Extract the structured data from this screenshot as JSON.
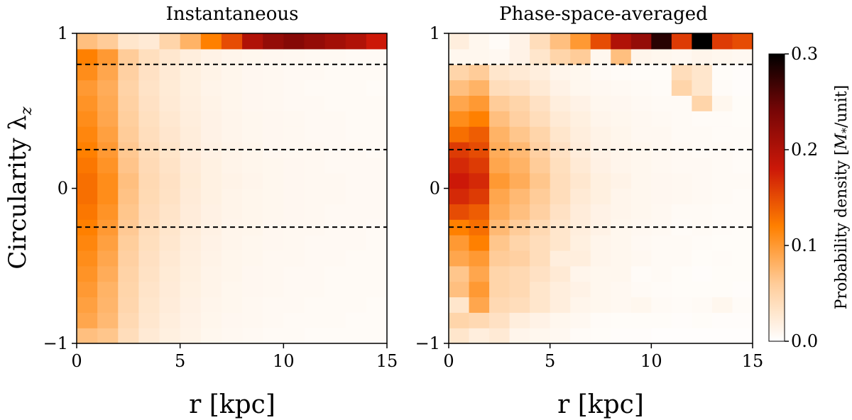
{
  "chart_data": [
    {
      "type": "heatmap",
      "title": "Instantaneous",
      "xlabel": "r [kpc]",
      "ylabel": "Circularity λ",
      "ylabel_subscript": "z",
      "xlim": [
        0,
        15
      ],
      "ylim": [
        -1,
        1
      ],
      "xticks": [
        0,
        5,
        10,
        15
      ],
      "yticks": [
        -1,
        0,
        1
      ],
      "ytick_labels": [
        "−1",
        "0",
        "1"
      ],
      "reference_lines_y": [
        0.8,
        0.25,
        -0.25
      ],
      "x_bins": 15,
      "y_bins": 20,
      "values": [
        [
          0.07,
          0.065,
          0.04,
          0.025,
          0.018,
          0.014,
          0.01,
          0.008,
          0.007,
          0.006,
          0.006,
          0.005,
          0.005,
          0.005,
          0.005
        ],
        [
          0.09,
          0.075,
          0.045,
          0.028,
          0.02,
          0.015,
          0.011,
          0.009,
          0.008,
          0.007,
          0.006,
          0.006,
          0.006,
          0.005,
          0.005
        ],
        [
          0.095,
          0.078,
          0.048,
          0.03,
          0.022,
          0.016,
          0.012,
          0.01,
          0.008,
          0.007,
          0.007,
          0.006,
          0.006,
          0.006,
          0.005
        ],
        [
          0.1,
          0.08,
          0.05,
          0.032,
          0.023,
          0.017,
          0.013,
          0.01,
          0.009,
          0.008,
          0.007,
          0.007,
          0.006,
          0.006,
          0.006
        ],
        [
          0.105,
          0.085,
          0.052,
          0.034,
          0.024,
          0.018,
          0.013,
          0.011,
          0.009,
          0.008,
          0.007,
          0.007,
          0.006,
          0.006,
          0.006
        ],
        [
          0.11,
          0.09,
          0.055,
          0.036,
          0.026,
          0.019,
          0.014,
          0.011,
          0.01,
          0.008,
          0.008,
          0.007,
          0.007,
          0.006,
          0.006
        ],
        [
          0.115,
          0.095,
          0.058,
          0.038,
          0.028,
          0.02,
          0.015,
          0.012,
          0.01,
          0.009,
          0.008,
          0.007,
          0.007,
          0.007,
          0.006
        ],
        [
          0.12,
          0.1,
          0.062,
          0.04,
          0.03,
          0.021,
          0.016,
          0.012,
          0.011,
          0.009,
          0.008,
          0.008,
          0.007,
          0.007,
          0.006
        ],
        [
          0.125,
          0.105,
          0.065,
          0.042,
          0.032,
          0.022,
          0.016,
          0.013,
          0.011,
          0.01,
          0.009,
          0.008,
          0.007,
          0.007,
          0.007
        ],
        [
          0.13,
          0.11,
          0.068,
          0.044,
          0.034,
          0.023,
          0.017,
          0.013,
          0.011,
          0.01,
          0.009,
          0.008,
          0.008,
          0.007,
          0.007
        ],
        [
          0.13,
          0.11,
          0.07,
          0.045,
          0.035,
          0.024,
          0.017,
          0.014,
          0.012,
          0.01,
          0.009,
          0.008,
          0.008,
          0.007,
          0.007
        ],
        [
          0.125,
          0.105,
          0.066,
          0.043,
          0.033,
          0.023,
          0.017,
          0.013,
          0.011,
          0.01,
          0.009,
          0.008,
          0.007,
          0.007,
          0.007
        ],
        [
          0.12,
          0.1,
          0.063,
          0.041,
          0.031,
          0.022,
          0.016,
          0.013,
          0.011,
          0.009,
          0.008,
          0.008,
          0.007,
          0.007,
          0.006
        ],
        [
          0.115,
          0.095,
          0.06,
          0.039,
          0.029,
          0.021,
          0.015,
          0.012,
          0.01,
          0.009,
          0.008,
          0.007,
          0.007,
          0.006,
          0.006
        ],
        [
          0.11,
          0.09,
          0.057,
          0.037,
          0.027,
          0.02,
          0.015,
          0.012,
          0.01,
          0.009,
          0.008,
          0.007,
          0.007,
          0.006,
          0.006
        ],
        [
          0.105,
          0.088,
          0.054,
          0.035,
          0.025,
          0.019,
          0.014,
          0.011,
          0.009,
          0.008,
          0.007,
          0.007,
          0.006,
          0.006,
          0.006
        ],
        [
          0.1,
          0.085,
          0.052,
          0.033,
          0.024,
          0.018,
          0.013,
          0.011,
          0.009,
          0.008,
          0.007,
          0.006,
          0.006,
          0.006,
          0.005
        ],
        [
          0.11,
          0.09,
          0.055,
          0.035,
          0.025,
          0.018,
          0.014,
          0.011,
          0.009,
          0.008,
          0.007,
          0.007,
          0.006,
          0.006,
          0.006
        ],
        [
          0.12,
          0.1,
          0.06,
          0.038,
          0.028,
          0.02,
          0.015,
          0.012,
          0.01,
          0.009,
          0.008,
          0.007,
          0.007,
          0.006,
          0.006
        ],
        [
          0.07,
          0.06,
          0.03,
          0.025,
          0.05,
          0.08,
          0.12,
          0.15,
          0.2,
          0.22,
          0.23,
          0.22,
          0.21,
          0.2,
          0.18
        ]
      ]
    },
    {
      "type": "heatmap",
      "title": "Phase-space-averaged",
      "xlabel": "r [kpc]",
      "xlim": [
        0,
        15
      ],
      "ylim": [
        -1,
        1
      ],
      "xticks": [
        0,
        5,
        10,
        15
      ],
      "yticks": [
        -1,
        0,
        1
      ],
      "ytick_labels": [
        "−1",
        "0",
        "1"
      ],
      "reference_lines_y": [
        0.8,
        0.25,
        -0.25
      ],
      "x_bins": 15,
      "y_bins": 20,
      "values": [
        [
          0.03,
          0.02,
          0.025,
          0.012,
          0.01,
          0.008,
          0.005,
          0.004,
          0.003,
          0.003,
          0.002,
          0.002,
          0.002,
          0.002,
          0.002
        ],
        [
          0.05,
          0.045,
          0.035,
          0.02,
          0.015,
          0.01,
          0.008,
          0.005,
          0.004,
          0.004,
          0.004,
          0.003,
          0.004,
          0.003,
          0.003
        ],
        [
          0.03,
          0.09,
          0.045,
          0.04,
          0.03,
          0.02,
          0.012,
          0.01,
          0.008,
          0.01,
          0.006,
          0.005,
          0.006,
          0.01,
          0.005
        ],
        [
          0.07,
          0.1,
          0.05,
          0.045,
          0.03,
          0.02,
          0.015,
          0.01,
          0.008,
          0.006,
          0.005,
          0.004,
          0.004,
          0.004,
          0.003
        ],
        [
          0.065,
          0.09,
          0.05,
          0.045,
          0.035,
          0.025,
          0.012,
          0.01,
          0.01,
          0.005,
          0.006,
          0.004,
          0.003,
          0.004,
          0.004
        ],
        [
          0.09,
          0.1,
          0.06,
          0.055,
          0.04,
          0.02,
          0.02,
          0.012,
          0.01,
          0.008,
          0.006,
          0.006,
          0.004,
          0.005,
          0.004
        ],
        [
          0.1,
          0.12,
          0.065,
          0.05,
          0.04,
          0.03,
          0.018,
          0.012,
          0.01,
          0.007,
          0.006,
          0.006,
          0.005,
          0.004,
          0.004
        ],
        [
          0.12,
          0.13,
          0.075,
          0.06,
          0.045,
          0.03,
          0.02,
          0.015,
          0.01,
          0.008,
          0.007,
          0.005,
          0.006,
          0.005,
          0.004
        ],
        [
          0.15,
          0.14,
          0.085,
          0.07,
          0.055,
          0.035,
          0.022,
          0.015,
          0.012,
          0.01,
          0.008,
          0.006,
          0.006,
          0.005,
          0.005
        ],
        [
          0.17,
          0.16,
          0.09,
          0.075,
          0.06,
          0.04,
          0.025,
          0.018,
          0.012,
          0.01,
          0.009,
          0.008,
          0.007,
          0.006,
          0.005
        ],
        [
          0.18,
          0.17,
          0.1,
          0.085,
          0.065,
          0.04,
          0.028,
          0.018,
          0.014,
          0.01,
          0.009,
          0.008,
          0.007,
          0.006,
          0.006
        ],
        [
          0.17,
          0.16,
          0.09,
          0.08,
          0.06,
          0.038,
          0.025,
          0.016,
          0.012,
          0.01,
          0.008,
          0.007,
          0.007,
          0.006,
          0.005
        ],
        [
          0.16,
          0.15,
          0.085,
          0.075,
          0.055,
          0.035,
          0.022,
          0.015,
          0.012,
          0.01,
          0.008,
          0.007,
          0.006,
          0.006,
          0.005
        ],
        [
          0.13,
          0.14,
          0.08,
          0.065,
          0.05,
          0.03,
          0.02,
          0.014,
          0.011,
          0.008,
          0.008,
          0.006,
          0.006,
          0.005,
          0.005
        ],
        [
          0.11,
          0.12,
          0.07,
          0.055,
          0.04,
          0.025,
          0.018,
          0.012,
          0.01,
          0.008,
          0.007,
          0.006,
          0.005,
          0.005,
          0.004
        ],
        [
          0.09,
          0.1,
          0.06,
          0.05,
          0.035,
          0.02,
          0.015,
          0.01,
          0.009,
          0.007,
          0.006,
          0.006,
          0.05,
          0.01,
          0.004
        ],
        [
          0.07,
          0.08,
          0.04,
          0.035,
          0.025,
          0.015,
          0.01,
          0.008,
          0.007,
          0.006,
          0.005,
          0.05,
          0.03,
          0.005,
          0.003
        ],
        [
          0.05,
          0.06,
          0.03,
          0.025,
          0.02,
          0.012,
          0.01,
          0.006,
          0.005,
          0.004,
          0.004,
          0.04,
          0.03,
          0.004,
          0.003
        ],
        [
          0.01,
          0.01,
          0.008,
          0.015,
          0.03,
          0.05,
          0.06,
          0.01,
          0.07,
          0.012,
          0.01,
          0.008,
          0.012,
          0.01,
          0.008
        ],
        [
          0.02,
          0.01,
          0.005,
          0.015,
          0.04,
          0.07,
          0.1,
          0.15,
          0.2,
          0.22,
          0.28,
          0.16,
          0.3,
          0.16,
          0.15
        ]
      ]
    }
  ],
  "colorbar": {
    "label": "Probability density [",
    "label_symbol": "M",
    "label_subscript": "*",
    "label_suffix": "/unit]",
    "vmin": 0.0,
    "vmax": 0.3,
    "ticks": [
      0.0,
      0.1,
      0.2,
      0.3
    ],
    "tick_labels": [
      "0.0",
      "0.1",
      "0.2",
      "0.3"
    ],
    "colormap": "gist_heat_r"
  },
  "colors": {
    "reference_line": "#000000",
    "axis": "#000000"
  }
}
